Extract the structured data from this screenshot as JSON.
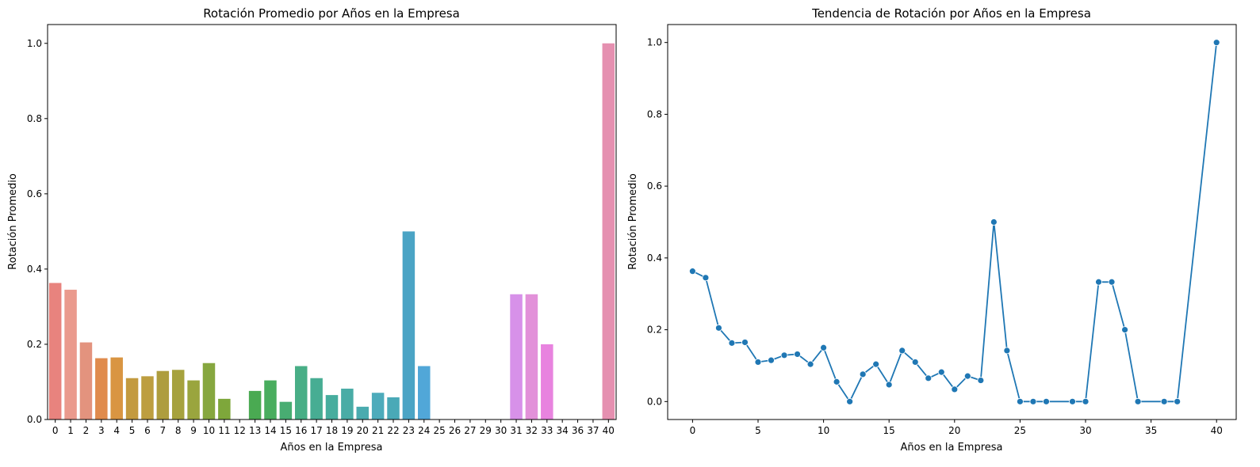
{
  "chart_data": [
    {
      "type": "bar",
      "title": "Rotación Promedio por Años en la Empresa",
      "xlabel": "Años en la Empresa",
      "ylabel": "Rotación Promedio",
      "ylim": [
        0,
        1.05
      ],
      "yticks": [
        "0.0",
        "0.2",
        "0.4",
        "0.6",
        "0.8",
        "1.0"
      ],
      "categories": [
        "0",
        "1",
        "2",
        "3",
        "4",
        "5",
        "6",
        "7",
        "8",
        "9",
        "10",
        "11",
        "12",
        "13",
        "14",
        "15",
        "16",
        "17",
        "18",
        "19",
        "20",
        "21",
        "22",
        "23",
        "24",
        "25",
        "26",
        "27",
        "29",
        "30",
        "31",
        "32",
        "33",
        "34",
        "36",
        "37",
        "40"
      ],
      "values": [
        0.363,
        0.345,
        0.205,
        0.163,
        0.165,
        0.11,
        0.115,
        0.129,
        0.132,
        0.104,
        0.15,
        0.055,
        0.0,
        0.076,
        0.104,
        0.047,
        0.142,
        0.11,
        0.065,
        0.082,
        0.034,
        0.071,
        0.059,
        0.5,
        0.142,
        0.0,
        0.0,
        0.0,
        0.0,
        0.0,
        0.333,
        0.333,
        0.2,
        0.0,
        0.0,
        0.0,
        1.0
      ],
      "colors": [
        "#e8837e",
        "#ea9a8d",
        "#e3937e",
        "#e08b4d",
        "#d99542",
        "#c39a3f",
        "#bd9e40",
        "#ae9d3e",
        "#a6a23e",
        "#9aa53e",
        "#86a73f",
        "#7ea73b",
        "#5aaa45",
        "#4aaa52",
        "#49ad5e",
        "#48ad72",
        "#48ae86",
        "#47ad93",
        "#47ad9e",
        "#49aca6",
        "#4aabaf",
        "#4dabbb",
        "#4aa9b7",
        "#4ba4c5",
        "#51a7d8",
        "#5aa5e0",
        "#80a0e8",
        "#a29aec",
        "#bf94ec",
        "#d491e6",
        "#d791e9",
        "#e291d9",
        "#e883df",
        "#e88ac8",
        "#e78cb5",
        "#e68da8",
        "#e590b0"
      ]
    },
    {
      "type": "line",
      "title": "Tendencia de Rotación por Años en la Empresa",
      "xlabel": "Años en la Empresa",
      "ylabel": "Rotación Promedio",
      "xlim": [
        -1.9,
        41.5
      ],
      "ylim": [
        -0.05,
        1.05
      ],
      "xticks": [
        0,
        5,
        10,
        15,
        20,
        25,
        30,
        35,
        40
      ],
      "yticks": [
        "0.0",
        "0.2",
        "0.4",
        "0.6",
        "0.8",
        "1.0"
      ],
      "x": [
        0,
        1,
        2,
        3,
        4,
        5,
        6,
        7,
        8,
        9,
        10,
        11,
        12,
        13,
        14,
        15,
        16,
        17,
        18,
        19,
        20,
        21,
        22,
        23,
        24,
        25,
        26,
        27,
        29,
        30,
        31,
        32,
        33,
        34,
        36,
        37,
        40
      ],
      "y": [
        0.363,
        0.345,
        0.205,
        0.163,
        0.165,
        0.11,
        0.115,
        0.129,
        0.132,
        0.104,
        0.15,
        0.055,
        0.0,
        0.076,
        0.104,
        0.047,
        0.142,
        0.11,
        0.065,
        0.082,
        0.034,
        0.071,
        0.059,
        0.5,
        0.142,
        0.0,
        0.0,
        0.0,
        0.0,
        0.0,
        0.333,
        0.333,
        0.2,
        0.0,
        0.0,
        0.0,
        1.0
      ],
      "color": "#1f77b4"
    }
  ]
}
